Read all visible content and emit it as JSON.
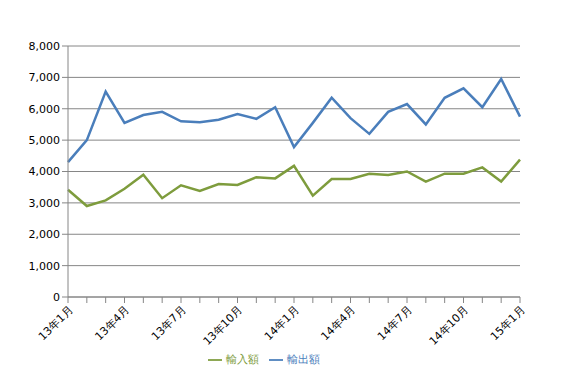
{
  "chart_data": {
    "type": "line",
    "categories": [
      "13年1月",
      null,
      null,
      "13年4月",
      null,
      null,
      "13年7月",
      null,
      null,
      "13年10月",
      null,
      null,
      "14年1月",
      null,
      null,
      "14年4月",
      null,
      null,
      "14年7月",
      null,
      null,
      "14年10月",
      null,
      null,
      "15年1月"
    ],
    "series": [
      {
        "name": "輸出額",
        "color": "#4a7ebb",
        "values": [
          4300,
          5000,
          6550,
          5550,
          5800,
          5900,
          5600,
          5570,
          5650,
          5830,
          5680,
          6050,
          4780,
          5550,
          6350,
          5700,
          5200,
          5900,
          6150,
          5500,
          6350,
          6650,
          6050,
          6950,
          5750
        ]
      },
      {
        "name": "輸入額",
        "color": "#7e9c3d",
        "values": [
          3420,
          2900,
          3080,
          3450,
          3900,
          3150,
          3560,
          3380,
          3600,
          3570,
          3820,
          3780,
          4180,
          3230,
          3760,
          3760,
          3930,
          3890,
          4000,
          3680,
          3930,
          3930,
          4130,
          3680,
          4380
        ]
      }
    ],
    "ylim": [
      0,
      8000
    ],
    "yticks": [
      0,
      {
        "value": 1000,
        "label": "1,000"
      },
      {
        "value": 2000,
        "label": "2,000"
      },
      {
        "value": 3000,
        "label": "3,000"
      },
      {
        "value": 4000,
        "label": "4,000"
      },
      {
        "value": 5000,
        "label": "5,000"
      },
      {
        "value": 6000,
        "label": "6,000"
      },
      {
        "value": 7000,
        "label": "7,000"
      },
      {
        "value": 8000,
        "label": "8,000"
      }
    ],
    "grid": true,
    "legend": "bottom"
  }
}
